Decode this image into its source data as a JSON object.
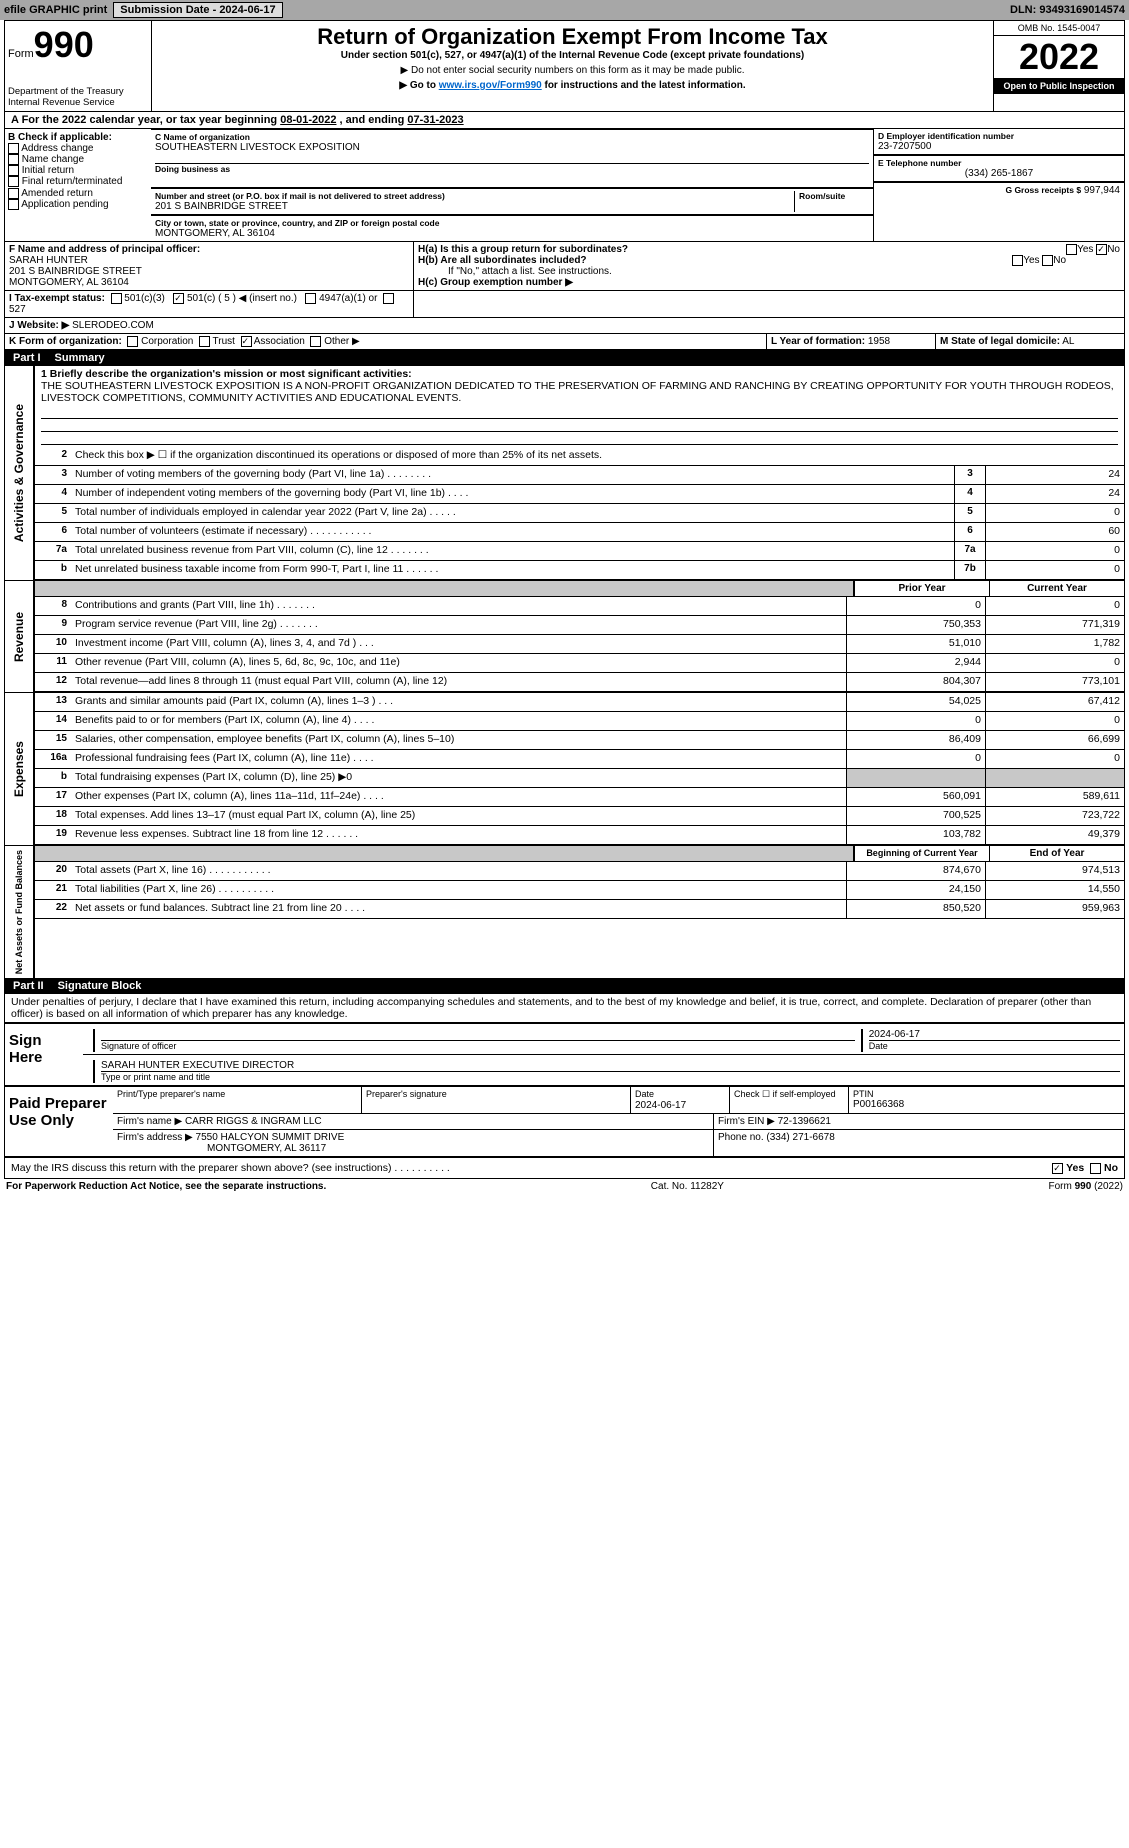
{
  "topbar": {
    "efile": "efile GRAPHIC print",
    "submission": "Submission Date - 2024-06-17",
    "dln": "DLN: 93493169014574"
  },
  "header": {
    "form_label": "Form",
    "form_no": "990",
    "dept": "Department of the Treasury",
    "irs": "Internal Revenue Service",
    "title": "Return of Organization Exempt From Income Tax",
    "subtitle": "Under section 501(c), 527, or 4947(a)(1) of the Internal Revenue Code (except private foundations)",
    "warn": "▶ Do not enter social security numbers on this form as it may be made public.",
    "goto_pre": "▶ Go to ",
    "goto_link": "www.irs.gov/Form990",
    "goto_post": " for instructions and the latest information.",
    "omb": "OMB No. 1545-0047",
    "year": "2022",
    "pub": "Open to Public Inspection"
  },
  "period": {
    "label_a": "A For the 2022 calendar year, or tax year beginning ",
    "begin": "08-01-2022",
    "mid": " , and ending ",
    "end": "07-31-2023"
  },
  "block_b": {
    "hdr": "B Check if applicable:",
    "items": [
      "Address change",
      "Name change",
      "Initial return",
      "Final return/terminated",
      "Amended return",
      "Application pending"
    ]
  },
  "block_c": {
    "name_lbl": "C Name of organization",
    "name": "SOUTHEASTERN LIVESTOCK EXPOSITION",
    "dba_lbl": "Doing business as",
    "addr_lbl": "Number and street (or P.O. box if mail is not delivered to street address)",
    "room_lbl": "Room/suite",
    "addr": "201 S BAINBRIDGE STREET",
    "city_lbl": "City or town, state or province, country, and ZIP or foreign postal code",
    "city": "MONTGOMERY, AL  36104"
  },
  "block_d": {
    "lbl": "D Employer identification number",
    "val": "23-7207500"
  },
  "block_e": {
    "lbl": "E Telephone number",
    "val": "(334) 265-1867"
  },
  "block_g": {
    "lbl": "G Gross receipts $",
    "val": "997,944"
  },
  "block_f": {
    "lbl": "F Name and address of principal officer:",
    "name": "SARAH HUNTER",
    "addr1": "201 S BAINBRIDGE STREET",
    "addr2": "MONTGOMERY, AL  36104"
  },
  "block_h": {
    "a": "H(a)  Is this a group return for subordinates?",
    "b": "H(b)  Are all subordinates included?",
    "note": "If \"No,\" attach a list. See instructions.",
    "c": "H(c)  Group exemption number ▶",
    "yes": "Yes",
    "no": "No"
  },
  "block_i": {
    "lbl": "I   Tax-exempt status:",
    "c3": "501(c)(3)",
    "c": "501(c) ( 5 ) ◀ (insert no.)",
    "a1": "4947(a)(1) or",
    "s527": "527"
  },
  "block_j": {
    "lbl": "J   Website: ▶",
    "val": " SLERODEO.COM"
  },
  "block_k": {
    "lbl": "K Form of organization:",
    "opts": [
      "Corporation",
      "Trust",
      "Association",
      "Other ▶"
    ]
  },
  "block_l": {
    "lbl": "L Year of formation:",
    "val": "1958"
  },
  "block_m": {
    "lbl": "M State of legal domicile:",
    "val": "AL"
  },
  "part1": {
    "num": "Part I",
    "ttl": "Summary"
  },
  "summary": {
    "q1": "1  Briefly describe the organization's mission or most significant activities:",
    "mission": "THE SOUTHEASTERN LIVESTOCK EXPOSITION IS A NON-PROFIT ORGANIZATION DEDICATED TO THE PRESERVATION OF FARMING AND RANCHING BY CREATING OPPORTUNITY FOR YOUTH THROUGH RODEOS, LIVESTOCK COMPETITIONS, COMMUNITY ACTIVITIES AND EDUCATIONAL EVENTS.",
    "q2": "Check this box ▶ ☐  if the organization discontinued its operations or disposed of more than 25% of its net assets."
  },
  "gov_lines": [
    {
      "n": "3",
      "t": "Number of voting members of the governing body (Part VI, line 1a)  .    .    .    .    .    .    .    .",
      "b": "3",
      "v": "24"
    },
    {
      "n": "4",
      "t": "Number of independent voting members of the governing body (Part VI, line 1b)    .    .    .    .",
      "b": "4",
      "v": "24"
    },
    {
      "n": "5",
      "t": "Total number of individuals employed in calendar year 2022 (Part V, line 2a)   .    .    .    .    .",
      "b": "5",
      "v": "0"
    },
    {
      "n": "6",
      "t": "Total number of volunteers (estimate if necessary)    .    .    .    .    .    .    .    .    .    .    .",
      "b": "6",
      "v": "60"
    },
    {
      "n": "7a",
      "t": "Total unrelated business revenue from Part VIII, column (C), line 12  .    .    .    .    .    .    .",
      "b": "7a",
      "v": "0"
    },
    {
      "n": "b",
      "t": "Net unrelated business taxable income from Form 990-T, Part I, line 11   .    .    .    .    .    .",
      "b": "7b",
      "v": "0"
    }
  ],
  "col_hdrs": {
    "py": "Prior Year",
    "cy": "Current Year"
  },
  "rev_lines": [
    {
      "n": "8",
      "t": "Contributions and grants (Part VIII, line 1h)   .    .    .    .    .    .    .",
      "py": "0",
      "cy": "0"
    },
    {
      "n": "9",
      "t": "Program service revenue (Part VIII, line 2g)   .    .    .    .    .    .    .",
      "py": "750,353",
      "cy": "771,319"
    },
    {
      "n": "10",
      "t": "Investment income (Part VIII, column (A), lines 3, 4, and 7d )    .    .    .",
      "py": "51,010",
      "cy": "1,782"
    },
    {
      "n": "11",
      "t": "Other revenue (Part VIII, column (A), lines 5, 6d, 8c, 9c, 10c, and 11e)",
      "py": "2,944",
      "cy": "0"
    },
    {
      "n": "12",
      "t": "Total revenue—add lines 8 through 11 (must equal Part VIII, column (A), line 12)",
      "py": "804,307",
      "cy": "773,101"
    }
  ],
  "exp_lines": [
    {
      "n": "13",
      "t": "Grants and similar amounts paid (Part IX, column (A), lines 1–3 )  .    .    .",
      "py": "54,025",
      "cy": "67,412"
    },
    {
      "n": "14",
      "t": "Benefits paid to or for members (Part IX, column (A), line 4)  .    .    .    .",
      "py": "0",
      "cy": "0"
    },
    {
      "n": "15",
      "t": "Salaries, other compensation, employee benefits (Part IX, column (A), lines 5–10)",
      "py": "86,409",
      "cy": "66,699"
    },
    {
      "n": "16a",
      "t": "Professional fundraising fees (Part IX, column (A), line 11e)   .    .    .    .",
      "py": "0",
      "cy": "0"
    },
    {
      "n": "b",
      "t": "Total fundraising expenses (Part IX, column (D), line 25) ▶0",
      "py": "",
      "cy": "",
      "shade": true
    },
    {
      "n": "17",
      "t": "Other expenses (Part IX, column (A), lines 11a–11d, 11f–24e)  .    .    .    .",
      "py": "560,091",
      "cy": "589,611"
    },
    {
      "n": "18",
      "t": "Total expenses. Add lines 13–17 (must equal Part IX, column (A), line 25)",
      "py": "700,525",
      "cy": "723,722"
    },
    {
      "n": "19",
      "t": "Revenue less expenses. Subtract line 18 from line 12   .    .    .    .    .    .",
      "py": "103,782",
      "cy": "49,379"
    }
  ],
  "net_hdrs": {
    "boy": "Beginning of Current Year",
    "eoy": "End of Year"
  },
  "net_lines": [
    {
      "n": "20",
      "t": "Total assets (Part X, line 16)  .    .    .    .    .    .    .    .    .    .    .",
      "py": "874,670",
      "cy": "974,513"
    },
    {
      "n": "21",
      "t": "Total liabilities (Part X, line 26)   .    .    .    .    .    .    .    .    .    .",
      "py": "24,150",
      "cy": "14,550"
    },
    {
      "n": "22",
      "t": "Net assets or fund balances. Subtract line 21 from line 20  .    .    .    .",
      "py": "850,520",
      "cy": "959,963"
    }
  ],
  "part2": {
    "num": "Part II",
    "ttl": "Signature Block"
  },
  "penalties": "Under penalties of perjury, I declare that I have examined this return, including accompanying schedules and statements, and to the best of my knowledge and belief, it is true, correct, and complete. Declaration of preparer (other than officer) is based on all information of which preparer has any knowledge.",
  "sign": {
    "hdr": "Sign Here",
    "sig_lbl": "Signature of officer",
    "date_lbl": "Date",
    "date": "2024-06-17",
    "name_lbl": "Type or print name and title",
    "name": "SARAH HUNTER  EXECUTIVE DIRECTOR"
  },
  "paid": {
    "hdr": "Paid Preparer Use Only",
    "c1": "Print/Type preparer's name",
    "c2": "Preparer's signature",
    "c3": "Date",
    "date": "2024-06-17",
    "c4": "Check ☐ if self-employed",
    "c5": "PTIN",
    "ptin": "P00166368",
    "firm_lbl": "Firm's name    ▶",
    "firm": "CARR RIGGS & INGRAM LLC",
    "ein_lbl": "Firm's EIN ▶",
    "ein": "72-1396621",
    "addr_lbl": "Firm's address ▶",
    "addr1": "7550 HALCYON SUMMIT DRIVE",
    "addr2": "MONTGOMERY, AL  36117",
    "phone_lbl": "Phone no.",
    "phone": "(334) 271-6678"
  },
  "discuss": {
    "q": "May the IRS discuss this return with the preparer shown above? (see instructions)   .    .    .    .    .    .    .    .    .    .",
    "yes": "Yes",
    "no": "No"
  },
  "footer": {
    "pra": "For Paperwork Reduction Act Notice, see the separate instructions.",
    "cat": "Cat. No. 11282Y",
    "form": "Form 990 (2022)"
  },
  "side_labels": {
    "gov": "Activities & Governance",
    "rev": "Revenue",
    "exp": "Expenses",
    "net": "Net Assets or Fund Balances"
  },
  "colors": {
    "bar": "#a7a7a7",
    "shade": "#c8c8c8",
    "link": "#0066cc"
  }
}
